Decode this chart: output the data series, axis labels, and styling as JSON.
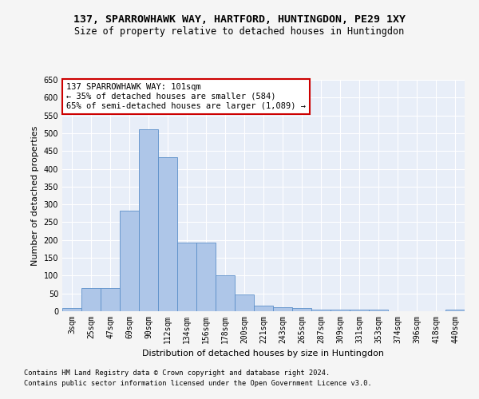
{
  "title": "137, SPARROWHAWK WAY, HARTFORD, HUNTINGDON, PE29 1XY",
  "subtitle": "Size of property relative to detached houses in Huntingdon",
  "xlabel": "Distribution of detached houses by size in Huntingdon",
  "ylabel": "Number of detached properties",
  "footnote1": "Contains HM Land Registry data © Crown copyright and database right 2024.",
  "footnote2": "Contains public sector information licensed under the Open Government Licence v3.0.",
  "annotation_line1": "137 SPARROWHAWK WAY: 101sqm",
  "annotation_line2": "← 35% of detached houses are smaller (584)",
  "annotation_line3": "65% of semi-detached houses are larger (1,089) →",
  "bar_color": "#aec6e8",
  "bar_edge_color": "#5b8fc9",
  "annotation_box_color": "#cc0000",
  "categories": [
    "3sqm",
    "25sqm",
    "47sqm",
    "69sqm",
    "90sqm",
    "112sqm",
    "134sqm",
    "156sqm",
    "178sqm",
    "200sqm",
    "221sqm",
    "243sqm",
    "265sqm",
    "287sqm",
    "309sqm",
    "331sqm",
    "353sqm",
    "374sqm",
    "396sqm",
    "418sqm",
    "440sqm"
  ],
  "values": [
    10,
    65,
    65,
    282,
    510,
    433,
    192,
    192,
    100,
    46,
    16,
    12,
    9,
    5,
    5,
    5,
    5,
    1,
    1,
    1,
    5
  ],
  "ylim": [
    0,
    650
  ],
  "yticks": [
    0,
    50,
    100,
    150,
    200,
    250,
    300,
    350,
    400,
    450,
    500,
    550,
    600,
    650
  ],
  "bg_color": "#e8eef8",
  "grid_color": "#ffffff",
  "fig_bg_color": "#f5f5f5",
  "title_fontsize": 9.5,
  "subtitle_fontsize": 8.5,
  "axis_label_fontsize": 8,
  "tick_fontsize": 7,
  "annot_fontsize": 7.5,
  "footnote_fontsize": 6.2
}
